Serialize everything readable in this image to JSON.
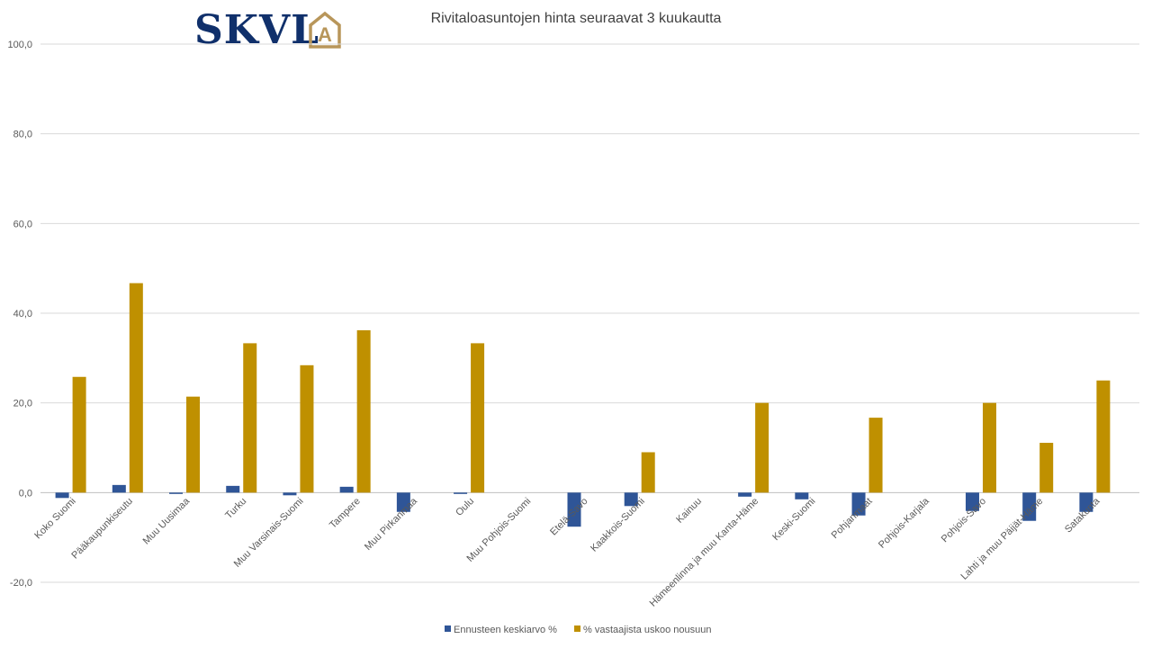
{
  "logo": {
    "text": "SKVL",
    "mark_text": "A",
    "text_color": "#10306b",
    "mark_color": "#b8965a"
  },
  "chart_data": {
    "type": "bar",
    "title": "Rivitaloasuntojen hinta seuraavat 3 kuukautta",
    "xlabel": "",
    "ylabel": "",
    "ylim": [
      -20,
      100
    ],
    "yticks": [
      -20,
      0,
      20,
      40,
      60,
      80,
      100
    ],
    "ytick_labels": [
      "-20,0",
      "0,0",
      "20,0",
      "40,0",
      "60,0",
      "80,0",
      "100,0"
    ],
    "grid": true,
    "legend_position": "bottom",
    "categories": [
      "Koko Suomi",
      "Pääkaupunkiseutu",
      "Muu Uusimaa",
      "Turku",
      "Muu Varsinais-Suomi",
      "Tampere",
      "Muu Pirkanmaa",
      "Oulu",
      "Muu Pohjois-Suomi",
      "Etelä-Savo",
      "Kaakkois-Suomi",
      "Kainuu",
      "Hämeenlinna ja muu Kanta-Häme",
      "Keski-Suomi",
      "Pohjanmaat",
      "Pohjois-Karjala",
      "Pohjois-Savo",
      "Lahti ja muu Päijät-Häme",
      "Satakunta"
    ],
    "series": [
      {
        "name": "Ennusteen keskiarvo %",
        "color": "#2f5597",
        "values": [
          -1.2,
          1.7,
          -0.3,
          1.5,
          -0.6,
          1.3,
          -4.3,
          -0.3,
          0,
          -7.6,
          -3.0,
          0,
          -0.9,
          -1.5,
          -5.1,
          0,
          -4.1,
          -6.3,
          -4.3
        ]
      },
      {
        "name": "% vastaajista uskoo  nousuun",
        "color": "#bf9000",
        "values": [
          25.8,
          46.7,
          21.4,
          33.3,
          28.4,
          36.2,
          0,
          33.3,
          0,
          0,
          9.0,
          0,
          20.0,
          0,
          16.7,
          0,
          20.0,
          11.1,
          25.0
        ]
      }
    ]
  }
}
